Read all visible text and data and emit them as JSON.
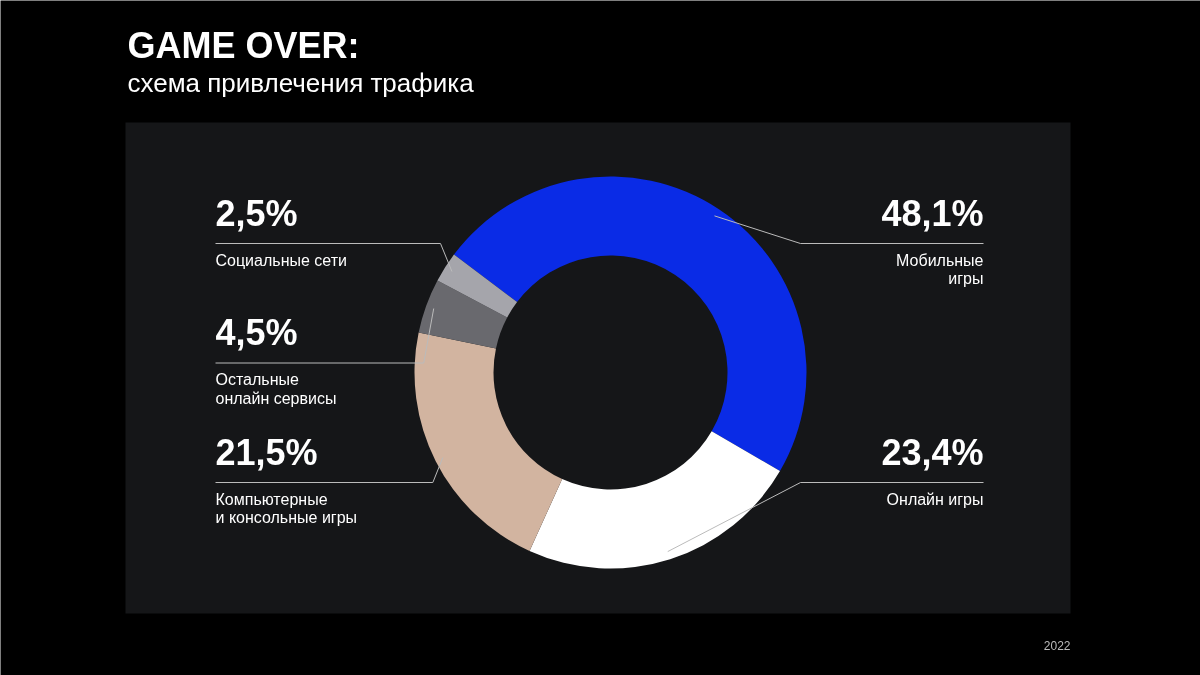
{
  "chart_data": {
    "type": "donut",
    "title": "GAME OVER:",
    "subtitle": "схема привлечения трафика",
    "categories": [
      "Мобильные\nигры",
      "Онлайн игры",
      "Компьютерные\nи консольные игры",
      "Остальные\nонлайн сервисы",
      "Социальные сети"
    ],
    "values": [
      48.1,
      23.4,
      21.5,
      4.5,
      2.5
    ],
    "colors": [
      "#0a2be6",
      "#ffffff",
      "#d2b4a0",
      "#69696e",
      "#a5a5ab"
    ],
    "value_labels": [
      "48,1%",
      "23,4%",
      "21,5%",
      "4,5%",
      "2,5%"
    ],
    "annotations": [
      "2022"
    ]
  }
}
